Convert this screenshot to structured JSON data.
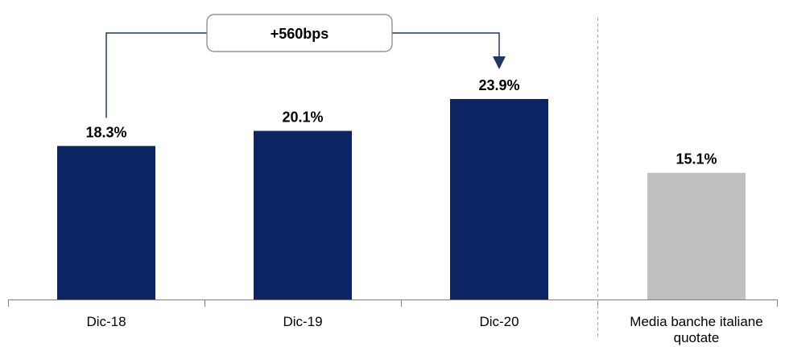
{
  "chart_data": {
    "type": "bar",
    "categories": [
      "Dic-18",
      "Dic-19",
      "Dic-20",
      "Media banche italiane quotate"
    ],
    "category_lines": [
      [
        "Dic-18"
      ],
      [
        "Dic-19"
      ],
      [
        "Dic-20"
      ],
      [
        "Media banche italiane",
        "quotate"
      ]
    ],
    "values": [
      18.3,
      20.1,
      23.9,
      15.1
    ],
    "value_labels": [
      "18.3%",
      "20.1%",
      "23.9%",
      "15.1%"
    ],
    "bar_colors": [
      "#0c2461",
      "#0c2461",
      "#0c2461",
      "#c0c0c0"
    ],
    "ylim": [
      0,
      30
    ],
    "grid": false,
    "annotation": {
      "text": "+560bps",
      "from": "Dic-18",
      "to": "Dic-20"
    },
    "title": "",
    "xlabel": "",
    "ylabel": ""
  },
  "colors": {
    "primary": "#0c2461",
    "benchmark": "#c0c0c0",
    "axis": "#7f7f7f",
    "connector": "#1f3864"
  }
}
